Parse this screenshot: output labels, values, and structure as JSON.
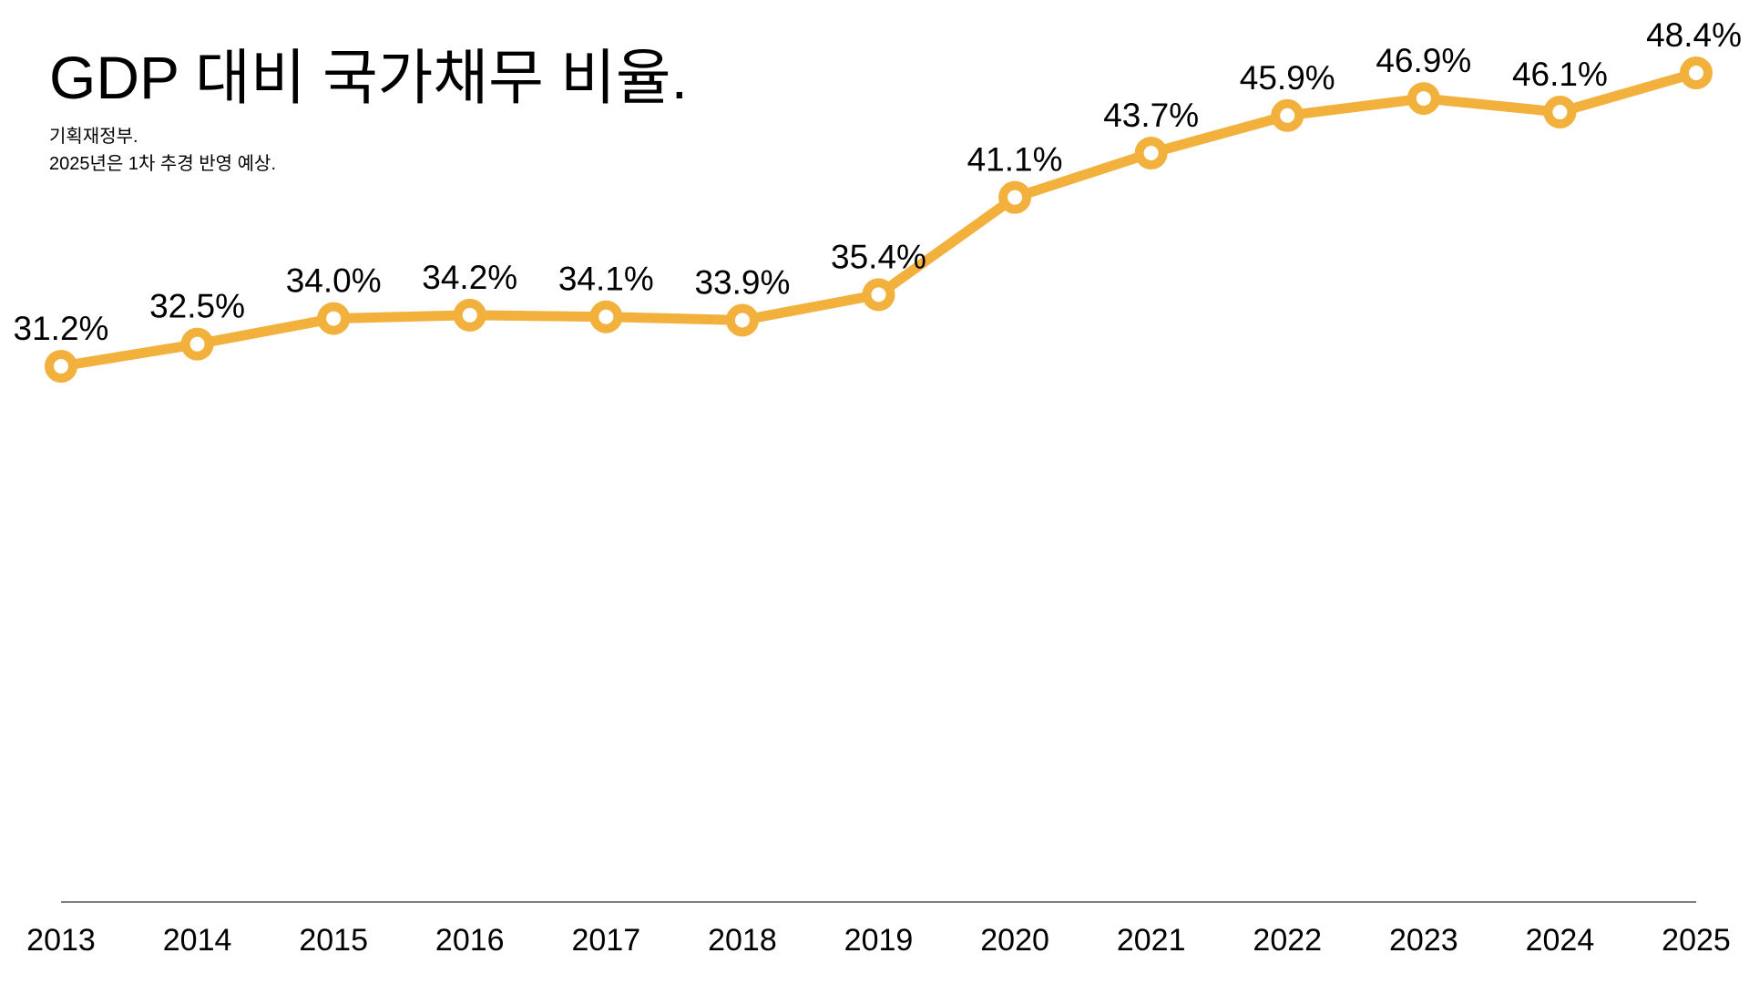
{
  "chart_data": {
    "type": "line",
    "title": "GDP 대비 국가채무 비율.",
    "notes": [
      "기획재정부.",
      "2025년은 1차 추경 반영 예상."
    ],
    "xlabel": "",
    "ylabel": "",
    "categories": [
      "2013",
      "2014",
      "2015",
      "2016",
      "2017",
      "2018",
      "2019",
      "2020",
      "2021",
      "2022",
      "2023",
      "2024",
      "2025"
    ],
    "series": [
      {
        "values": [
          31.2,
          32.5,
          34.0,
          34.2,
          34.1,
          33.9,
          35.4,
          41.1,
          43.7,
          45.9,
          46.9,
          46.1,
          48.4
        ],
        "labels": [
          "31.2%",
          "32.5%",
          "34.0%",
          "34.2%",
          "34.1%",
          "33.9%",
          "35.4%",
          "41.1%",
          "43.7%",
          "45.9%",
          "46.9%",
          "46.1%",
          "48.4%"
        ],
        "color": "#F2B13C"
      }
    ],
    "ylim": [
      0,
      50
    ],
    "grid": false,
    "legend": "none",
    "baseline_color": "#555555",
    "marker_fill": "#ffffff"
  }
}
